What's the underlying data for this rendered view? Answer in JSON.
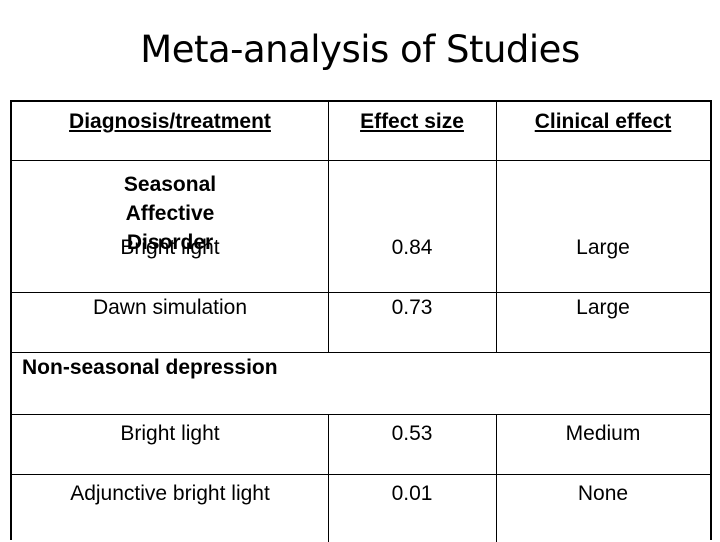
{
  "title": "Meta-analysis of Studies",
  "table": {
    "headers": [
      "Diagnosis/treatment",
      "Effect size",
      "Clinical effect"
    ],
    "sections": [
      {
        "heading": "Seasonal Affective Disorder",
        "rows": [
          {
            "treatment": "Bright light",
            "effect_size": "0.84",
            "clinical_effect": "Large"
          },
          {
            "treatment": "Dawn simulation",
            "effect_size": "0.73",
            "clinical_effect": "Large"
          }
        ]
      },
      {
        "heading": "Non-seasonal depression",
        "rows": [
          {
            "treatment": "Bright light",
            "effect_size": "0.53",
            "clinical_effect": "Medium"
          },
          {
            "treatment": "Adjunctive bright light",
            "effect_size": "0.01",
            "clinical_effect": "None"
          }
        ]
      }
    ]
  }
}
